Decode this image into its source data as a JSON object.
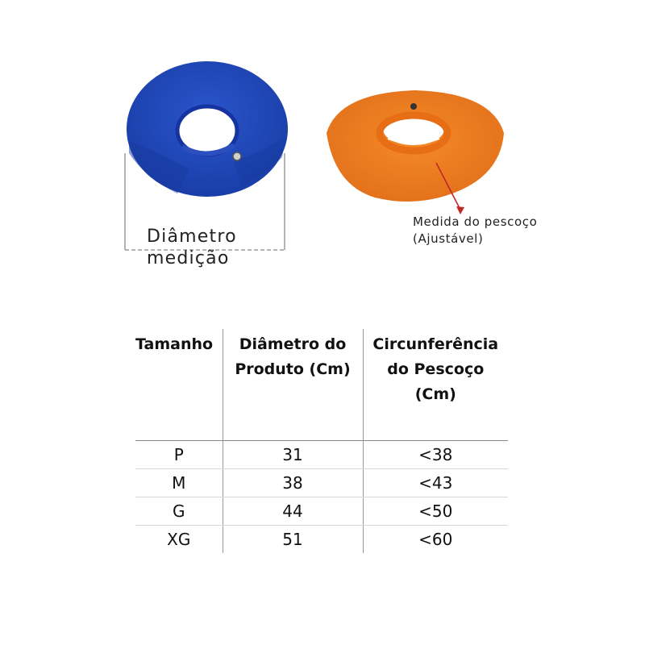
{
  "left_figure": {
    "color": "#1f45b5",
    "icon": "blue-cone-collar",
    "label_lines": [
      "Diâmetro",
      "medição"
    ]
  },
  "right_figure": {
    "color": "#f07f20",
    "icon": "orange-cone-collar",
    "label_lines": [
      "Medida do pescoço",
      "(Ajustável)"
    ]
  },
  "size_table": {
    "headers": [
      [
        "Tamanho"
      ],
      [
        "Diâmetro do",
        "Produto (Cm)"
      ],
      [
        "Circunferência",
        "do Pescoço",
        "(Cm)"
      ]
    ],
    "rows": [
      [
        "P",
        "31",
        "<38"
      ],
      [
        "M",
        "38",
        "<43"
      ],
      [
        "G",
        "44",
        "<50"
      ],
      [
        "XG",
        "51",
        "<60"
      ]
    ]
  }
}
